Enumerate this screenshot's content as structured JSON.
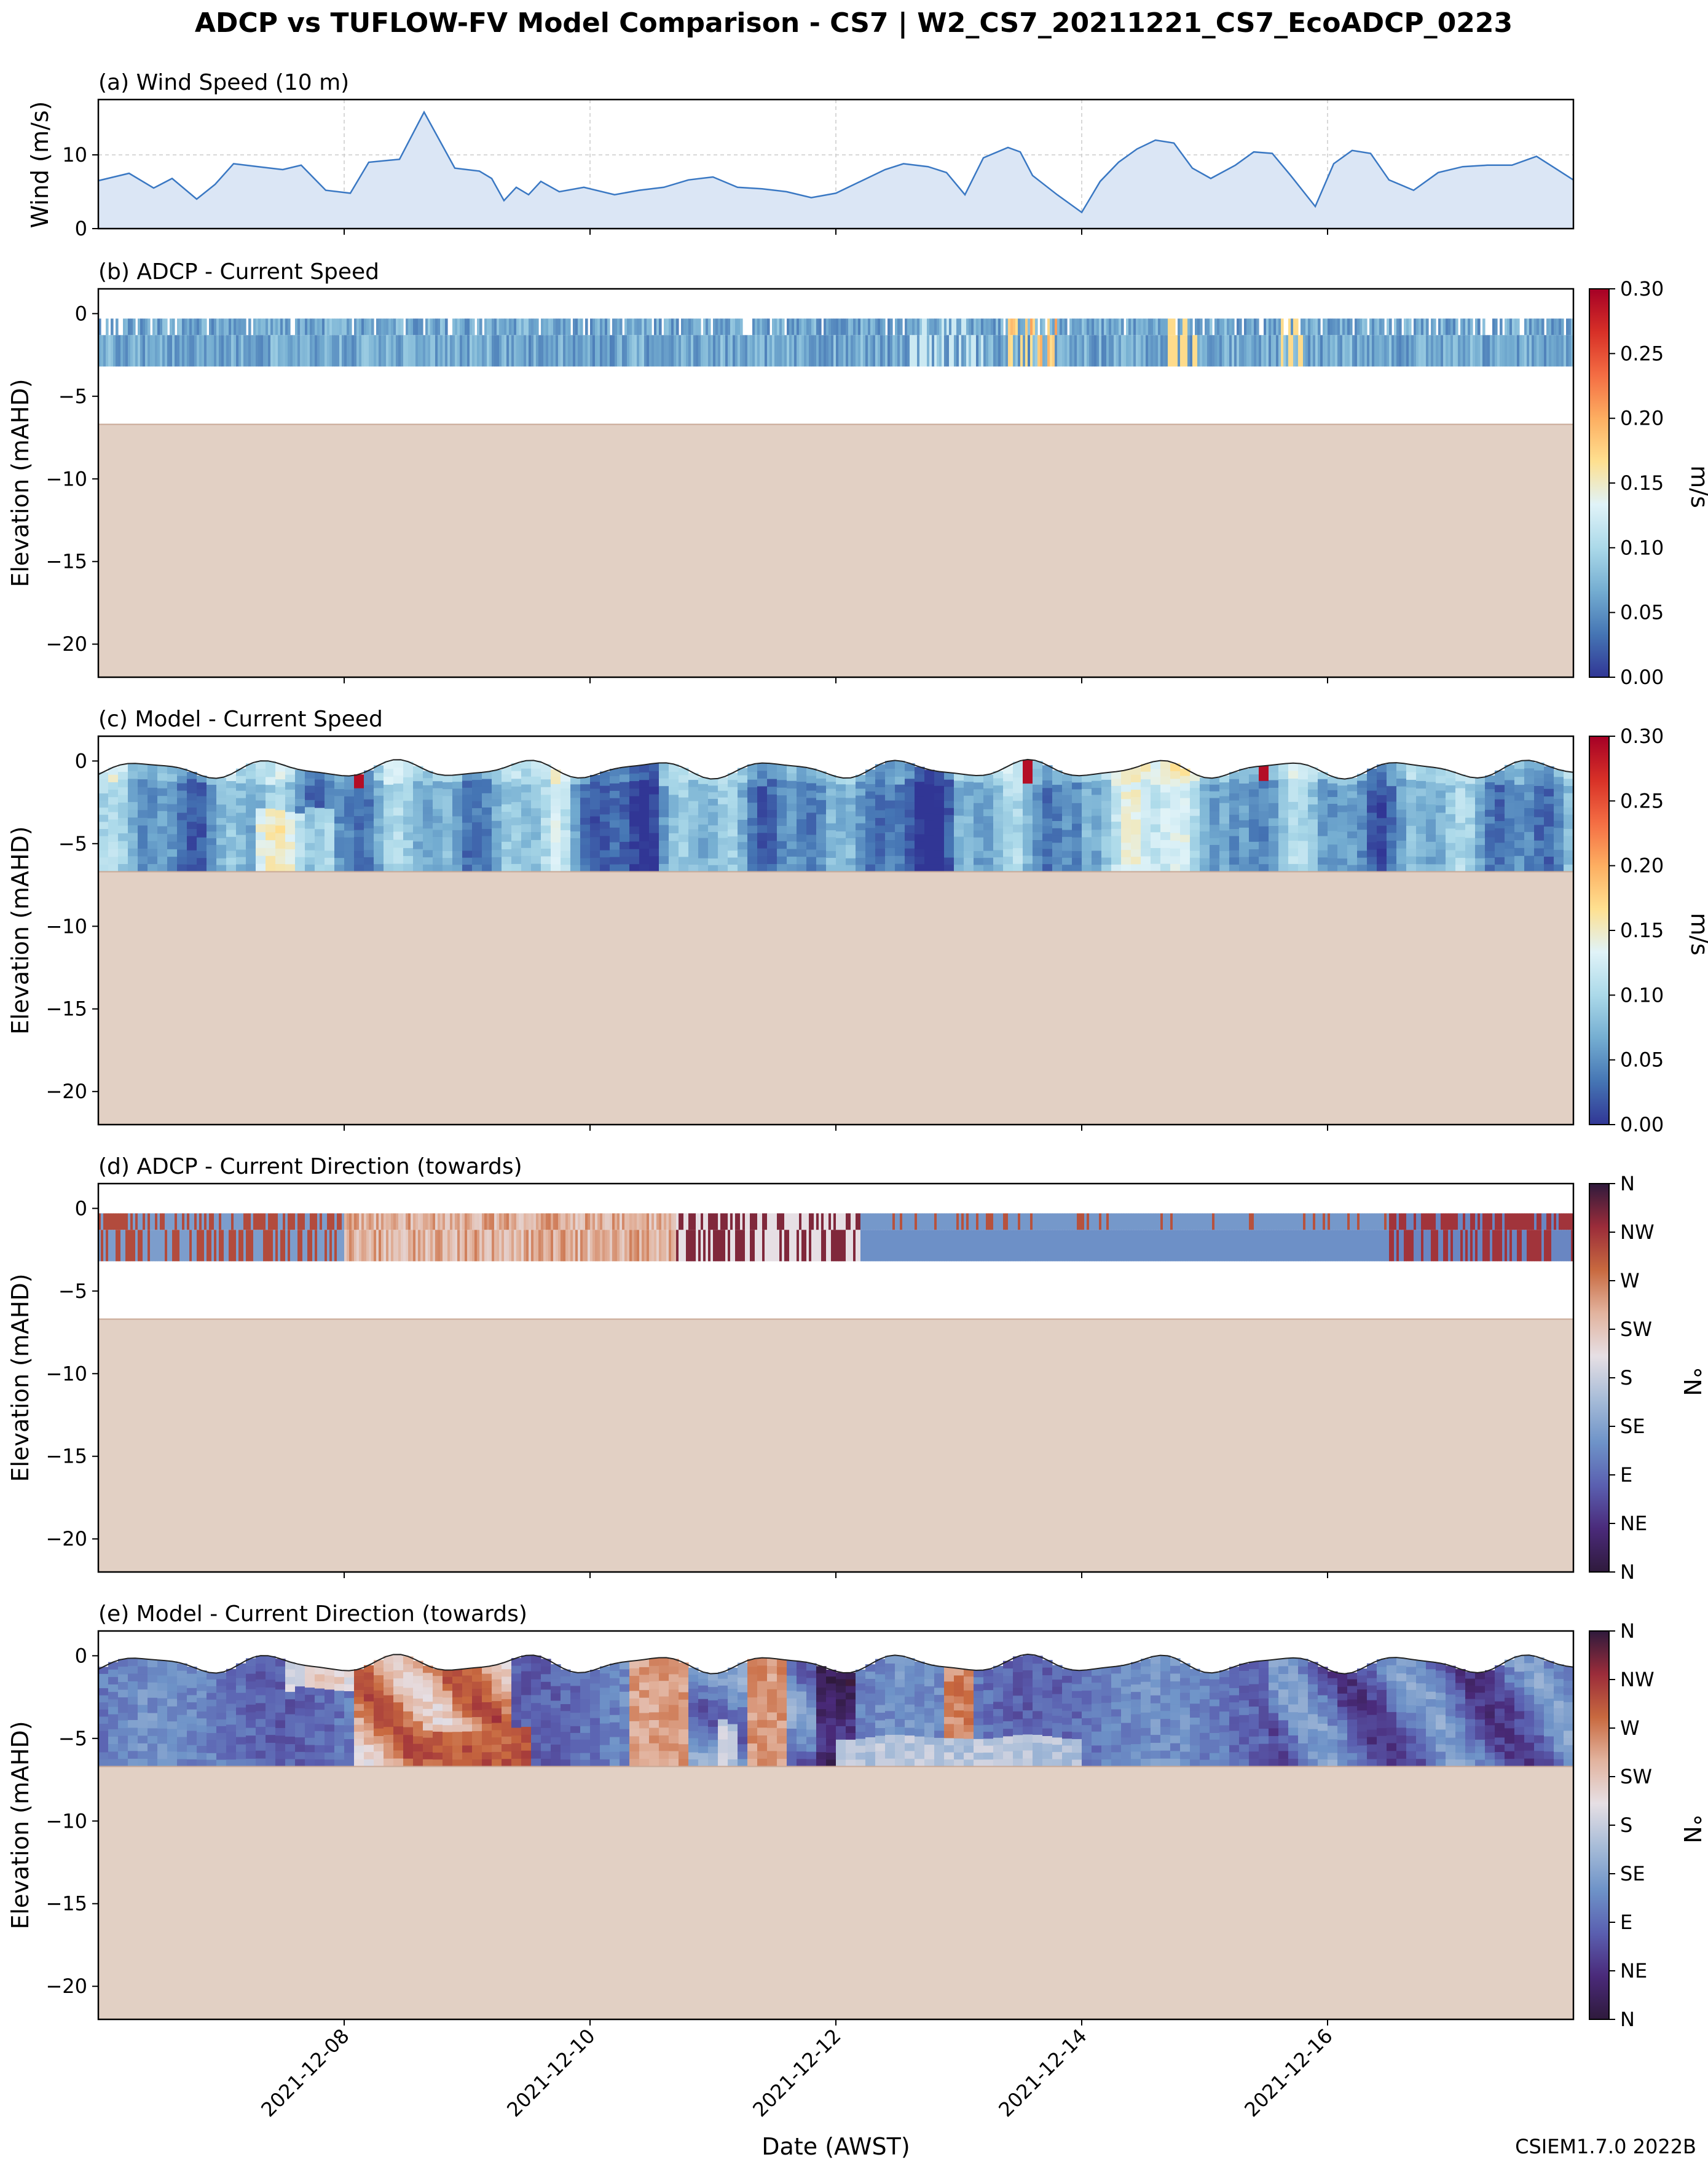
{
  "figure": {
    "title": "ADCP vs TUFLOW-FV Model Comparison - CS7 | W2_CS7_20211221_CS7_EcoADCP_0223",
    "xlabel": "Date (AWST)",
    "xticks": [
      "2021-12-08",
      "2021-12-10",
      "2021-12-12",
      "2021-12-14",
      "2021-12-16"
    ],
    "watermark": "CSIEM1.7.0 2022B"
  },
  "colors": {
    "wind_line": "#3a78c3",
    "wind_fill": "#dbe6f5",
    "seabed": "#e2d0c4",
    "grid": "#cccccc",
    "watermark": "#b8b8b8",
    "speed_cmap": [
      "#313695",
      "#4575b4",
      "#74add1",
      "#abd9e9",
      "#e0f3f8",
      "#fee090",
      "#fdae61",
      "#f46d43",
      "#d73027",
      "#a50026"
    ],
    "dir_cmap": [
      "#2f1a3c",
      "#4a2a7a",
      "#5a5fb0",
      "#6e93c8",
      "#a7bcd8",
      "#e6dfe4",
      "#e2b39e",
      "#c8693f",
      "#9b2c3a",
      "#2f1a3c"
    ]
  },
  "chart_data": [
    {
      "panel": "a",
      "type": "area",
      "title": "(a) Wind Speed (10 m)",
      "ylabel": "Wind (m/s)",
      "x_unit": "days since 2021-12-06 00:00",
      "xlim": [
        0,
        12.0
      ],
      "ylim": [
        0,
        17.5
      ],
      "yticks": [
        "0",
        "10"
      ],
      "grid": true,
      "x": [
        0,
        0.25,
        0.45,
        0.6,
        0.8,
        0.95,
        1.1,
        1.3,
        1.5,
        1.65,
        1.85,
        2.05,
        2.2,
        2.45,
        2.65,
        2.9,
        3.1,
        3.2,
        3.3,
        3.4,
        3.5,
        3.6,
        3.75,
        3.95,
        4.2,
        4.4,
        4.6,
        4.8,
        5.0,
        5.2,
        5.4,
        5.6,
        5.8,
        6.0,
        6.2,
        6.4,
        6.55,
        6.75,
        6.9,
        7.05,
        7.2,
        7.4,
        7.5,
        7.6,
        7.8,
        8.0,
        8.15,
        8.3,
        8.45,
        8.6,
        8.75,
        8.9,
        9.05,
        9.25,
        9.4,
        9.55,
        9.7,
        9.9,
        10.05,
        10.2,
        10.35,
        10.5,
        10.7,
        10.9,
        11.1,
        11.3,
        11.5,
        11.7,
        11.85,
        12.0
      ],
      "series": [
        {
          "name": "Wind speed",
          "values": [
            6.5,
            7.5,
            5.5,
            6.8,
            4.0,
            6.0,
            8.8,
            8.4,
            8.0,
            8.6,
            5.2,
            4.8,
            9.0,
            9.4,
            15.8,
            8.2,
            7.8,
            6.8,
            3.8,
            5.6,
            4.6,
            6.4,
            5.0,
            5.6,
            4.6,
            5.2,
            5.6,
            6.6,
            7.0,
            5.6,
            5.4,
            5.0,
            4.2,
            4.8,
            6.4,
            8.0,
            8.8,
            8.4,
            7.6,
            4.6,
            9.6,
            11.0,
            10.4,
            7.2,
            4.6,
            2.2,
            6.4,
            9.0,
            10.8,
            12.0,
            11.6,
            8.2,
            6.8,
            8.6,
            10.4,
            10.2,
            7.2,
            3.0,
            8.8,
            10.6,
            10.2,
            6.6,
            5.2,
            7.6,
            8.4,
            8.6,
            8.6,
            9.8,
            8.2,
            6.6
          ]
        }
      ]
    },
    {
      "panel": "b",
      "type": "heatmap",
      "title": "(b) ADCP - Current Speed",
      "ylabel": "Elevation (mAHD)",
      "xlim": [
        0,
        12.0
      ],
      "ylim": [
        -22,
        1.5
      ],
      "yticks": [
        "0",
        "−5",
        "−10",
        "−15",
        "−20"
      ],
      "data_top": -0.3,
      "data_bottom": -3.2,
      "seabed_elevation": -6.7,
      "colorbar": {
        "label": "m/s",
        "range": [
          0,
          0.3
        ],
        "ticks": [
          "0.00",
          "0.05",
          "0.10",
          "0.15",
          "0.20",
          "0.25",
          "0.30"
        ]
      }
    },
    {
      "panel": "c",
      "type": "heatmap",
      "title": "(c) Model - Current Speed",
      "ylabel": "Elevation (mAHD)",
      "xlim": [
        0,
        12.0
      ],
      "ylim": [
        -22,
        1.5
      ],
      "yticks": [
        "0",
        "−5",
        "−10",
        "−15",
        "−20"
      ],
      "surface_mean": -0.5,
      "surface_amplitude": 0.8,
      "seabed_elevation": -6.7,
      "colorbar": {
        "label": "m/s",
        "range": [
          0,
          0.3
        ],
        "ticks": [
          "0.00",
          "0.05",
          "0.10",
          "0.15",
          "0.20",
          "0.25",
          "0.30"
        ]
      }
    },
    {
      "panel": "d",
      "type": "heatmap",
      "title": "(d) ADCP - Current Direction (towards)",
      "ylabel": "Elevation (mAHD)",
      "xlim": [
        0,
        12.0
      ],
      "ylim": [
        -22,
        1.5
      ],
      "yticks": [
        "0",
        "−5",
        "−10",
        "−15",
        "−20"
      ],
      "data_top": -0.3,
      "data_bottom": -3.2,
      "seabed_elevation": -6.7,
      "colorbar": {
        "label": "°N",
        "range": [
          0,
          360
        ],
        "ticks": [
          "N",
          "NE",
          "E",
          "SE",
          "S",
          "SW",
          "W",
          "NW",
          "N"
        ]
      }
    },
    {
      "panel": "e",
      "type": "heatmap",
      "title": "(e) Model - Current Direction (towards)",
      "ylabel": "Elevation (mAHD)",
      "xlim": [
        0,
        12.0
      ],
      "ylim": [
        -22,
        1.5
      ],
      "yticks": [
        "0",
        "−5",
        "−10",
        "−15",
        "−20"
      ],
      "surface_mean": -0.5,
      "surface_amplitude": 0.8,
      "seabed_elevation": -6.7,
      "colorbar": {
        "label": "°N",
        "range": [
          0,
          360
        ],
        "ticks": [
          "N",
          "NE",
          "E",
          "SE",
          "S",
          "SW",
          "W",
          "NW",
          "N"
        ]
      }
    }
  ]
}
